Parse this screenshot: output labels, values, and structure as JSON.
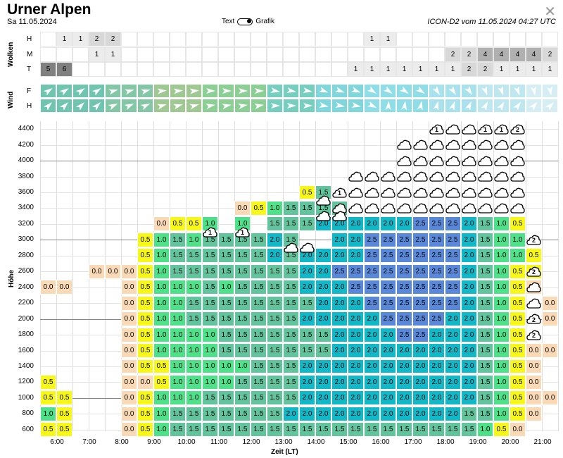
{
  "header": {
    "title": "Urner Alpen",
    "date": "Sa 11.05.2024",
    "toggle_left": "Text",
    "toggle_right": "Grafik",
    "model": "ICON-D2 vom 11.05.2024 04:27 UTC",
    "close_icon": "close-icon"
  },
  "clouds": {
    "section_label": "Wolken",
    "rows": [
      {
        "label": "H",
        "values": [
          "",
          "1",
          "1",
          "2",
          "2",
          "",
          "",
          "",
          "",
          "",
          "",
          "",
          "",
          "",
          "",
          "",
          "",
          "",
          "",
          "",
          "1",
          "1",
          "",
          "",
          "",
          "",
          "",
          "",
          "",
          "",
          "",
          "",
          ""
        ]
      },
      {
        "label": "M",
        "values": [
          "",
          "",
          "",
          "1",
          "1",
          "",
          "",
          "",
          "",
          "",
          "",
          "",
          "",
          "",
          "",
          "",
          "",
          "",
          "",
          "",
          "",
          "",
          "",
          "",
          "",
          "2",
          "2",
          "4",
          "4",
          "4",
          "4",
          "2",
          "2",
          "2"
        ]
      },
      {
        "label": "T",
        "values": [
          "5",
          "6",
          "",
          "",
          "",
          "",
          "",
          "",
          "",
          "",
          "",
          "",
          "",
          "",
          "",
          "",
          "",
          "",
          "",
          "1",
          "1",
          "1",
          "1",
          "1",
          "1",
          "1",
          "2",
          "2",
          "1",
          "1",
          "1",
          "1",
          "1",
          "1",
          "1"
        ]
      }
    ]
  },
  "wind": {
    "section_label": "Wind",
    "rows": [
      {
        "label": "F"
      },
      {
        "label": "H"
      }
    ]
  },
  "main": {
    "y_axis_label": "Höhe",
    "x_axis_label": "Zeit (LT)",
    "y_ticks": [
      "600",
      "800",
      "1000",
      "1200",
      "1400",
      "1600",
      "1800",
      "2000",
      "2200",
      "2400",
      "2600",
      "2800",
      "3000",
      "3200",
      "3400",
      "3600",
      "3800",
      "4000",
      "4200",
      "4400"
    ],
    "x_ticks": [
      "6:00",
      "7:00",
      "8:00",
      "9:00",
      "10:00",
      "11:00",
      "12:00",
      "13:00",
      "14:00",
      "15:00",
      "16:00",
      "17:00",
      "18:00",
      "19:00",
      "20:00",
      "21:00"
    ]
  },
  "colors": {
    "c0": "#f9d9b6",
    "c05": "#f7f718",
    "c10": "#4fe08a",
    "c15": "#62c49c",
    "c20": "#11b8c8",
    "c25": "#5a88d8",
    "cloud_light": "#eeeeee",
    "cloud_mid": "#cccccc",
    "cloud_dark": "#888888"
  },
  "chart_data": {
    "type": "heatmap",
    "x_range": [
      "6:00",
      "21:00"
    ],
    "y_range": [
      600,
      4500
    ],
    "step_x_minutes": 30,
    "step_y_m": 200,
    "cells": {
      "20:00": [],
      "cols": [
        {
          "t": "5:30",
          "cells": {
            "600": "0.5",
            "800": "1.0",
            "1000": "0.5",
            "1200": "0.5",
            "2400": "0.0"
          }
        },
        {
          "t": "6:00",
          "cells": {
            "600": "0.5",
            "800": "0.5",
            "1000": "0.5",
            "2400": "0.0"
          }
        },
        {
          "t": "7:00",
          "cells": {
            "2600": "0.0"
          }
        },
        {
          "t": "7:30",
          "cells": {
            "2600": "0.0"
          }
        },
        {
          "t": "8:00",
          "cells": {
            "600": "0.0",
            "800": "0.0",
            "1000": "0.0",
            "1200": "0.0",
            "1400": "0.0",
            "1600": "0.0",
            "1800": "0.0",
            "2000": "0.0",
            "2200": "0.0",
            "2400": "0.0",
            "2600": "0.0"
          }
        },
        {
          "t": "8:30",
          "cells": {
            "600": "0.5",
            "800": "0.5",
            "1000": "0.5",
            "1200": "0.0",
            "1400": "0.5",
            "1600": "0.5",
            "1800": "0.5",
            "2000": "0.5",
            "2200": "0.5",
            "2400": "0.5",
            "2600": "0.5",
            "2800": "0.5",
            "3000": "0.5"
          }
        },
        {
          "t": "9:00",
          "cells": {
            "600": "1.0",
            "800": "1.0",
            "1000": "1.0",
            "1200": "0.5",
            "1400": "0.5",
            "1600": "1.0",
            "1800": "1.0",
            "2000": "1.0",
            "2200": "1.0",
            "2400": "1.0",
            "2600": "1.0",
            "2800": "1.0",
            "3000": "1.0",
            "3200": "0.0"
          }
        },
        {
          "t": "9:30",
          "cells": {
            "600": "1.5",
            "800": "1.5",
            "1000": "1.0",
            "1200": "1.0",
            "1400": "1.0",
            "1600": "1.0",
            "1800": "1.0",
            "2000": "1.0",
            "2200": "1.0",
            "2400": "1.0",
            "2600": "1.5",
            "2800": "1.5",
            "3000": "1.5",
            "3200": "0.5"
          }
        },
        {
          "t": "10:00",
          "cells": {
            "600": "1.5",
            "800": "1.5",
            "1000": "1.0",
            "1200": "1.0",
            "1400": "1.0",
            "1600": "1.0",
            "1800": "1.0",
            "2000": "1.5",
            "2200": "1.5",
            "2400": "1.0",
            "2600": "1.5",
            "2800": "1.5",
            "3000": "1.0",
            "3200": "0.5"
          }
        },
        {
          "t": "10:30",
          "cells": {
            "600": "1.5",
            "800": "1.5",
            "1000": "1.5",
            "1200": "1.0",
            "1400": "1.0",
            "1600": "1.0",
            "1800": "1.0",
            "2000": "1.5",
            "2200": "1.5",
            "2400": "1.5",
            "2600": "1.5",
            "2800": "1.5",
            "3000": "1.5",
            "3200": "1.0"
          }
        },
        {
          "t": "11:00",
          "cells": {
            "600": "1.5",
            "800": "1.5",
            "1000": "1.5",
            "1200": "1.0",
            "1400": "1.0",
            "1600": "1.5",
            "1800": "1.5",
            "2000": "1.5",
            "2200": "1.5",
            "2400": "1.0",
            "2600": "1.5",
            "2800": "1.5",
            "3000": "1.5"
          }
        },
        {
          "t": "11:30",
          "cells": {
            "600": "1.5",
            "800": "1.5",
            "1000": "1.5",
            "1200": "1.5",
            "1400": "1.0",
            "1600": "1.5",
            "1800": "1.5",
            "2000": "1.5",
            "2200": "1.5",
            "2400": "1.5",
            "2600": "1.5",
            "2800": "1.5",
            "3000": "1.5",
            "3200": "1.0",
            "3400": "0.0"
          }
        },
        {
          "t": "12:00",
          "cells": {
            "600": "1.5",
            "800": "1.5",
            "1000": "1.5",
            "1200": "1.5",
            "1400": "1.5",
            "1600": "1.5",
            "1800": "1.5",
            "2000": "1.5",
            "2200": "1.5",
            "2400": "1.5",
            "2600": "1.5",
            "2800": "1.5",
            "3000": "1.5",
            "3400": "0.5"
          }
        },
        {
          "t": "12:30",
          "cells": {
            "600": "1.5",
            "800": "1.5",
            "1000": "1.5",
            "1200": "1.5",
            "1400": "1.5",
            "1600": "1.5",
            "1800": "1.5",
            "2000": "1.5",
            "2200": "1.5",
            "2400": "1.5",
            "2600": "1.5",
            "2800": "2.0",
            "3000": "2.0",
            "3200": "1.5",
            "3400": "1.0"
          }
        },
        {
          "t": "13:00",
          "cells": {
            "600": "1.5",
            "800": "2.0",
            "1000": "1.5",
            "1200": "1.5",
            "1400": "1.5",
            "1600": "1.5",
            "1800": "1.5",
            "2000": "1.5",
            "2200": "1.5",
            "2400": "1.5",
            "2600": "1.5",
            "2800": "1.5",
            "3000": "1.5",
            "3200": "1.5",
            "3400": "1.5"
          }
        },
        {
          "t": "13:30",
          "cells": {
            "600": "1.5",
            "800": "2.0",
            "1000": "2.0",
            "1200": "2.0",
            "1400": "2.0",
            "1600": "1.5",
            "1800": "1.5",
            "2000": "2.0",
            "2200": "1.5",
            "2400": "2.0",
            "2600": "2.0",
            "2800": "2.0",
            "3200": "1.5",
            "3400": "1.5",
            "3600": "0.5"
          }
        },
        {
          "t": "14:00",
          "cells": {
            "600": "1.5",
            "800": "2.0",
            "1000": "2.0",
            "1200": "2.0",
            "1400": "2.0",
            "1600": "1.5",
            "1800": "1.5",
            "2000": "2.0",
            "2200": "2.0",
            "2400": "2.0",
            "2600": "2.0",
            "2800": "2.0",
            "3200": "2.0",
            "3400": "1.5",
            "3600": "1.5"
          }
        }
      ]
    }
  }
}
